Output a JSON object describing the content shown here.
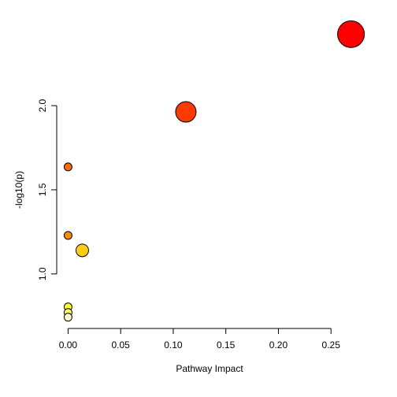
{
  "chart_data": {
    "type": "scatter",
    "xlabel": "Pathway Impact",
    "ylabel": "-log10(p)",
    "x": [
      0.269,
      0.112,
      0,
      0,
      0.0135,
      0,
      0,
      0
    ],
    "values": [
      2.425,
      1.963,
      1.636,
      1.229,
      1.14,
      0.804,
      0.771,
      0.743
    ],
    "sizes": [
      17,
      13,
      5,
      5,
      8,
      5,
      5,
      5
    ],
    "colors": [
      "#ff0000",
      "#ff3a00",
      "#ff6a00",
      "#ff8c00",
      "#ffcc11",
      "#ffff22",
      "#ffff66",
      "#ffffcc"
    ],
    "xlim": [
      -0.0108,
      0.2798
    ],
    "ylim": [
      0.676,
      2.492
    ],
    "xticks": [
      {
        "value": 0,
        "label": "0.00"
      },
      0.05,
      {
        "value": 0.1,
        "label": "0.10"
      },
      0.15,
      {
        "value": 0.2,
        "label": "0.20"
      },
      0.25
    ],
    "yticks": [
      {
        "value": 1,
        "label": "1.0"
      },
      1.5,
      {
        "value": 2,
        "label": "2.0"
      }
    ]
  }
}
